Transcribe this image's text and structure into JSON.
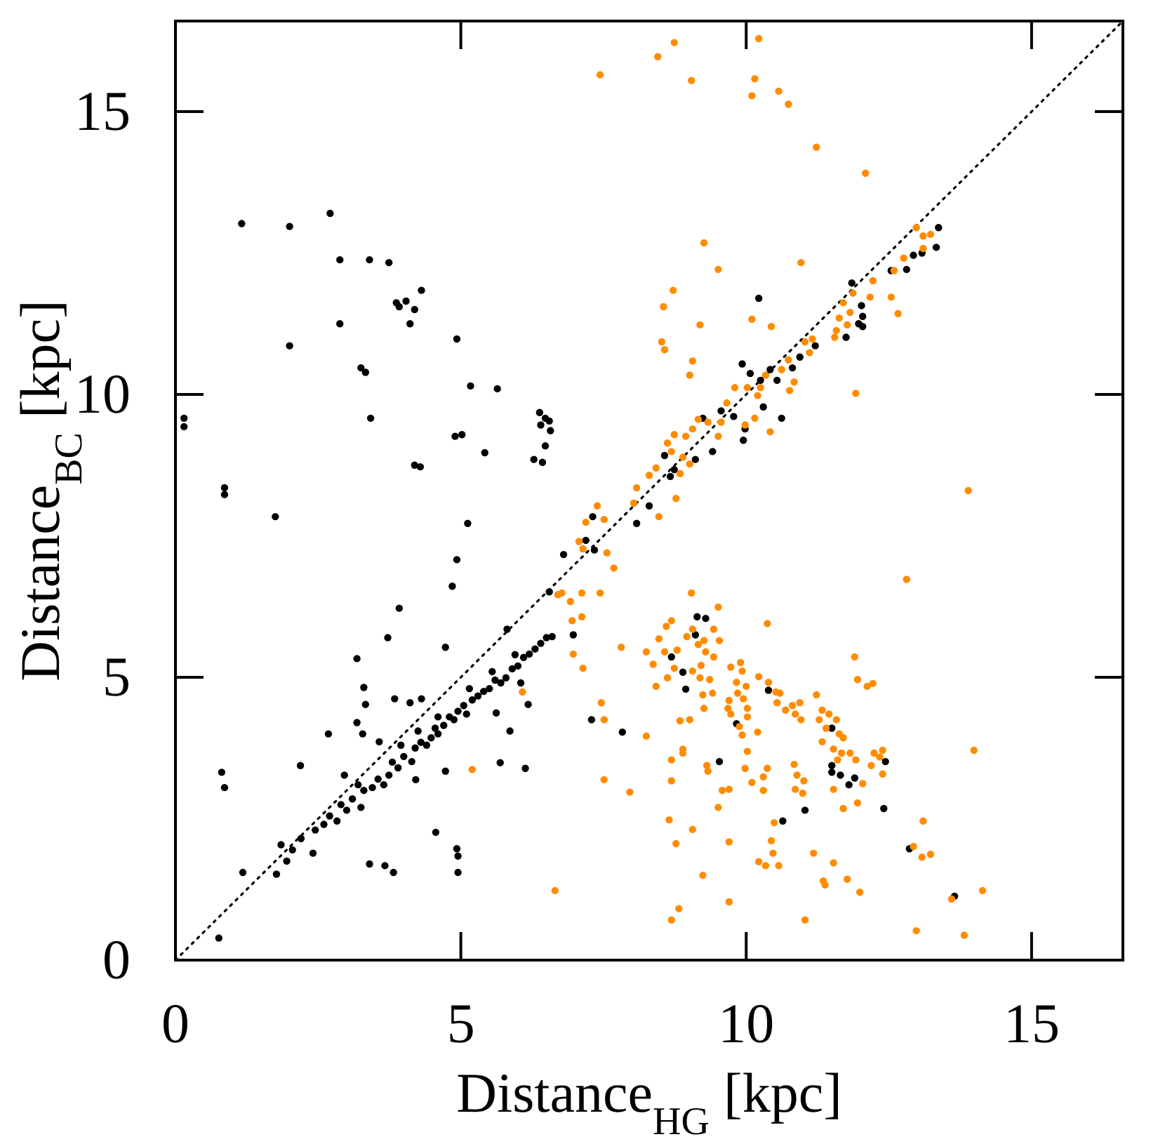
{
  "chart_data": {
    "type": "scatter",
    "xlabel": "Distance$_{HG}$ [kpc]",
    "ylabel": "Distance$_{BC}$ [kpc]",
    "xlim": [
      0,
      16.6
    ],
    "ylim": [
      0,
      16.6
    ],
    "xticks": [
      0,
      5,
      10,
      15
    ],
    "yticks": [
      0,
      5,
      10,
      15
    ],
    "grid": false,
    "marker": "circle",
    "series": [
      {
        "type": "line",
        "color": "#000000",
        "line_style": "dotted",
        "marker": "none",
        "x": [
          0,
          16.6
        ],
        "values": [
          0,
          16.6
        ]
      },
      {
        "color": "#000000",
        "x": [
          0.15,
          0.15,
          0.86,
          0.86,
          1.75,
          1.16,
          2.0,
          2.0,
          2.71,
          2.88,
          2.88,
          3.4,
          3.74,
          3.87,
          3.92,
          4.04,
          4.19,
          4.31,
          4.11,
          3.25,
          3.33,
          3.42,
          4.93,
          5.17,
          5.64,
          5.02,
          4.9,
          5.42,
          6.38,
          6.48,
          6.55,
          6.4,
          6.57,
          6.48,
          6.28,
          6.43,
          4.19,
          4.29,
          5.12,
          4.93,
          4.85,
          3.92,
          3.72,
          4.73,
          3.18,
          3.3,
          3.33,
          3.18,
          3.28,
          2.68,
          2.19,
          0.81,
          0.86,
          3.57,
          2.96,
          1.18,
          0.76,
          3.4,
          3.67,
          3.82,
          4.56,
          4.93,
          4.95,
          4.95,
          4.73,
          5.69,
          6.13,
          5.86,
          5.62,
          6.18,
          3.84,
          4.11,
          4.31,
          4.21,
          5.81,
          6.55,
          6.8,
          6.97,
          7.29,
          7.83,
          7.19,
          7.31,
          7.34,
          8.08,
          1.77,
          1.85,
          1.95,
          2.05,
          2.2,
          2.41,
          2.45,
          2.6,
          2.7,
          2.83,
          2.9,
          3.0,
          3.1,
          3.25,
          3.3,
          3.45,
          3.55,
          3.65,
          3.74,
          3.8,
          3.9,
          4.0,
          4.14,
          4.2,
          4.3,
          4.4,
          4.48,
          4.55,
          4.6,
          4.7,
          4.8,
          4.88,
          4.95,
          5.05,
          5.1,
          5.2,
          5.3,
          5.4,
          5.5,
          5.6,
          5.7,
          5.79,
          5.9,
          6.0,
          6.1,
          6.2,
          6.3,
          6.4,
          6.5,
          6.6,
          5.55,
          4.6,
          3.95,
          3.2,
          4.25,
          5.95,
          6.05,
          5.15,
          10.22,
          11.85,
          13.37,
          13.33,
          13.08,
          12.93,
          12.81,
          12.54,
          12.02,
          12.04,
          11.97,
          12.04,
          11.75,
          11.21,
          10.94,
          10.81,
          10.54,
          10.42,
          10.25,
          10.07,
          10.3,
          9.93,
          10.62,
          9.95,
          9.98,
          9.78,
          9.56,
          9.41,
          9.24,
          9.11,
          8.57,
          8.67,
          8.74,
          8.3,
          8.69,
          8.89,
          8.94,
          9.14,
          9.29,
          9.11,
          9.83,
          9.53,
          10.64,
          11.03,
          11.5,
          11.5,
          11.5,
          11.65,
          11.8,
          11.9,
          12.44,
          12.41,
          12.86,
          13.65,
          10.39
        ],
        "values": [
          9.58,
          9.43,
          8.35,
          8.23,
          7.84,
          13.02,
          10.86,
          12.97,
          13.2,
          12.38,
          11.25,
          12.38,
          12.33,
          11.62,
          11.55,
          11.65,
          11.5,
          11.84,
          11.25,
          10.47,
          10.39,
          9.58,
          10.98,
          10.15,
          10.1,
          9.29,
          9.26,
          8.97,
          9.68,
          9.58,
          9.53,
          9.46,
          9.36,
          9.09,
          8.85,
          8.8,
          8.75,
          8.72,
          7.72,
          7.08,
          6.61,
          6.22,
          5.7,
          5.53,
          5.33,
          4.82,
          4.52,
          4.2,
          4.0,
          4.0,
          3.44,
          3.32,
          3.05,
          3.86,
          3.27,
          1.55,
          0.39,
          1.7,
          1.67,
          1.55,
          2.26,
          1.97,
          1.84,
          1.55,
          3.34,
          3.49,
          3.39,
          4.05,
          4.37,
          4.52,
          4.62,
          4.55,
          4.62,
          3.19,
          5.85,
          6.51,
          7.17,
          5.75,
          4.25,
          4.03,
          7.42,
          7.84,
          7.25,
          7.72,
          1.52,
          2.04,
          1.75,
          1.95,
          2.15,
          1.89,
          2.3,
          2.4,
          2.55,
          2.46,
          2.75,
          2.65,
          2.85,
          2.7,
          3.0,
          3.05,
          3.2,
          3.1,
          3.27,
          3.5,
          3.4,
          3.6,
          3.51,
          3.75,
          3.85,
          3.8,
          3.93,
          4.1,
          4.0,
          4.15,
          4.3,
          4.25,
          4.4,
          4.5,
          4.35,
          4.6,
          4.67,
          4.75,
          4.8,
          4.95,
          4.9,
          4.99,
          5.15,
          5.2,
          5.35,
          5.41,
          5.5,
          5.6,
          5.7,
          5.72,
          5.1,
          4.3,
          3.8,
          3.1,
          4.05,
          5.4,
          4.9,
          4.8,
          11.7,
          11.97,
          12.95,
          12.6,
          12.5,
          12.46,
          12.21,
          12.19,
          11.57,
          11.38,
          11.25,
          11.2,
          11.01,
          10.86,
          10.66,
          10.47,
          10.25,
          10.44,
          10.25,
          10.37,
          9.78,
          10.54,
          9.58,
          9.19,
          9.39,
          9.61,
          9.71,
          8.99,
          9.58,
          8.85,
          8.92,
          8.55,
          8.67,
          8.03,
          5.36,
          5.09,
          4.79,
          6.07,
          6.04,
          5.75,
          4.18,
          3.51,
          2.46,
          2.65,
          4.1,
          3.44,
          3.32,
          3.27,
          3.1,
          3.22,
          3.51,
          2.68,
          1.97,
          1.13,
          4.77
        ]
      },
      {
        "color": "#ff8c00",
        "x": [
          8.45,
          8.74,
          10.22,
          9.04,
          10.15,
          10.1,
          10.57,
          10.74,
          11.23,
          12.09,
          7.44,
          9.26,
          9.51,
          10.96,
          8.72,
          8.55,
          9.19,
          10.1,
          10.44,
          8.52,
          8.57,
          9.06,
          9.01,
          11.92,
          13.89,
          12.54,
          12.66,
          12.98,
          13.1,
          13.23,
          13.1,
          12.76,
          12.59,
          12.22,
          12.17,
          11.87,
          11.7,
          11.82,
          11.63,
          11.77,
          11.58,
          11.55,
          11.16,
          11.03,
          11.11,
          10.74,
          10.84,
          10.76,
          10.62,
          10.34,
          10.25,
          10.2,
          10.02,
          9.8,
          9.66,
          9.56,
          9.33,
          9.51,
          9.16,
          9.06,
          8.94,
          8.74,
          8.62,
          8.69,
          8.89,
          9.01,
          8.42,
          8.84,
          8.3,
          9.98,
          10.15,
          10.42,
          8.08,
          8.03,
          7.39,
          7.51,
          7.19,
          7.07,
          7.14,
          7.56,
          7.68,
          6.7,
          6.77,
          6.92,
          7.12,
          7.44,
          6.95,
          7.12,
          6.97,
          7.14,
          7.81,
          6.08,
          7.46,
          7.51,
          5.2,
          7.51,
          7.96,
          6.65,
          8.77,
          8.47,
          12.81,
          9.04,
          9.51,
          8.6,
          8.69,
          9.43,
          9.53,
          10.37,
          8.47,
          8.25,
          8.37,
          8.57,
          8.79,
          9.06,
          8.96,
          9.16,
          9.26,
          9.29,
          9.43,
          8.42,
          8.62,
          8.74,
          9.06,
          9.21,
          9.19,
          9.36,
          9.41,
          9.24,
          9.26,
          9.73,
          9.9,
          9.93,
          9.83,
          10.0,
          9.85,
          9.95,
          9.7,
          9.68,
          10.02,
          9.73,
          10.02,
          9.88,
          9.93,
          10.2,
          10.22,
          10.39,
          10.52,
          10.59,
          10.54,
          10.69,
          10.81,
          10.94,
          10.86,
          10.96,
          11.23,
          11.33,
          11.28,
          11.45,
          11.4,
          11.58,
          11.63,
          11.7,
          11.33,
          11.53,
          11.6,
          11.67,
          11.82,
          11.92,
          12.24,
          12.39,
          12.34,
          12.19,
          12.39,
          12.04,
          11.53,
          11.7,
          11.95,
          11.9,
          11.95,
          12.12,
          12.22,
          13.99,
          13.1,
          12.93,
          13.08,
          13.23,
          13.6,
          14.14,
          12.98,
          13.82,
          8.84,
          9.01,
          8.25,
          8.69,
          8.89,
          8.89,
          8.69,
          9.31,
          9.33,
          9.58,
          9.7,
          9.51,
          10.02,
          9.98,
          10.1,
          10.3,
          10.37,
          10.3,
          10.49,
          10.44,
          10.47,
          10.22,
          10.34,
          10.57,
          10.84,
          10.89,
          11.01,
          10.86,
          10.99,
          11.18,
          11.35,
          11.38,
          11.53,
          11.77,
          11.99,
          11.03,
          9.7,
          9.7,
          9.24,
          9.06,
          8.77,
          8.65,
          8.82,
          8.69
        ],
        "values": [
          15.97,
          16.22,
          16.29,
          15.55,
          15.58,
          15.28,
          15.36,
          15.13,
          14.37,
          13.91,
          15.65,
          12.68,
          12.21,
          12.33,
          11.84,
          11.55,
          11.23,
          11.33,
          11.2,
          10.93,
          10.79,
          10.59,
          10.34,
          10.02,
          8.3,
          11.72,
          11.43,
          12.95,
          12.8,
          12.83,
          12.58,
          12.41,
          12.19,
          12.01,
          11.72,
          11.79,
          11.62,
          11.45,
          11.35,
          11.23,
          11.13,
          11.01,
          10.98,
          10.93,
          10.74,
          10.61,
          10.22,
          10.07,
          10.44,
          10.34,
          10.12,
          9.98,
          10.12,
          10.12,
          9.85,
          9.51,
          9.51,
          9.26,
          9.56,
          9.39,
          9.26,
          9.29,
          9.14,
          8.99,
          8.89,
          8.77,
          8.7,
          8.6,
          8.57,
          9.46,
          9.58,
          9.34,
          8.35,
          8.08,
          8.03,
          7.79,
          7.74,
          7.4,
          7.27,
          7.2,
          6.93,
          6.46,
          6.49,
          6.34,
          6.49,
          6.49,
          6.0,
          6.07,
          5.41,
          5.16,
          5.53,
          4.74,
          4.55,
          4.25,
          3.37,
          3.19,
          2.97,
          1.23,
          8.16,
          7.84,
          6.73,
          6.49,
          6.24,
          5.9,
          6.0,
          5.85,
          5.65,
          5.95,
          5.68,
          5.45,
          5.23,
          5.45,
          5.48,
          5.85,
          5.72,
          5.58,
          5.65,
          5.45,
          5.36,
          4.84,
          4.99,
          5.16,
          5.11,
          5.21,
          4.99,
          4.96,
          4.72,
          4.69,
          4.45,
          5.18,
          5.26,
          5.11,
          4.91,
          4.84,
          4.72,
          4.62,
          4.59,
          4.45,
          4.45,
          4.35,
          4.3,
          4.13,
          3.98,
          4.03,
          5.01,
          4.91,
          4.74,
          4.72,
          4.55,
          4.42,
          4.5,
          4.55,
          4.35,
          4.25,
          4.69,
          4.42,
          4.25,
          4.35,
          4.1,
          4.25,
          4.0,
          3.93,
          3.86,
          3.73,
          3.54,
          3.66,
          3.66,
          3.54,
          3.66,
          3.71,
          3.59,
          3.44,
          3.29,
          3.12,
          3.02,
          2.68,
          2.78,
          5.36,
          4.96,
          4.84,
          4.89,
          3.71,
          2.46,
          2.01,
          1.82,
          1.87,
          1.08,
          1.23,
          0.52,
          0.44,
          4.23,
          4.25,
          3.96,
          3.54,
          3.73,
          3.66,
          3.17,
          3.44,
          3.34,
          3.0,
          3.02,
          2.7,
          3.69,
          3.39,
          3.14,
          3.24,
          3.39,
          3.0,
          2.43,
          2.11,
          1.89,
          1.74,
          1.67,
          1.67,
          3.46,
          3.27,
          3.17,
          3.02,
          2.95,
          1.89,
          1.4,
          1.33,
          1.72,
          1.43,
          1.2,
          0.71,
          2.09,
          1.03,
          1.5,
          2.31,
          2.06,
          2.48,
          0.91,
          0.71
        ]
      }
    ]
  }
}
